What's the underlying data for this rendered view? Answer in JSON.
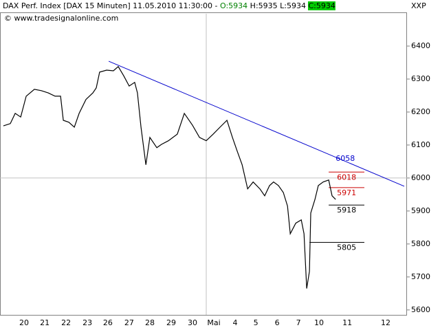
{
  "chart_data": {
    "type": "line",
    "header": [
      {
        "text": "DAX Perf. Index [DAX  15 Minuten] 11.05.2010 11:30:00 - ",
        "color": "#000000"
      },
      {
        "text": "O:5934",
        "color": "#008000"
      },
      {
        "text": " H:5935",
        "color": "#000000"
      },
      {
        "text": " L:5934",
        "color": "#000000"
      },
      {
        "text": " C:5934",
        "color": "#008000",
        "box": true
      }
    ],
    "symbol": "XXP",
    "credit": "© www.tradesignalonline.com",
    "xlim": [
      0,
      19.28
    ],
    "ylim": [
      5585,
      6498
    ],
    "xticks": [
      {
        "value": 1.14,
        "label": "20"
      },
      {
        "value": 2.12,
        "label": "21"
      },
      {
        "value": 3.13,
        "label": "22"
      },
      {
        "value": 4.14,
        "label": "23"
      },
      {
        "value": 5.11,
        "label": "26"
      },
      {
        "value": 6.12,
        "label": "27"
      },
      {
        "value": 7.1,
        "label": "28"
      },
      {
        "value": 8.11,
        "label": "29"
      },
      {
        "value": 9.12,
        "label": "30"
      },
      {
        "value": 10.13,
        "label": "Mai"
      },
      {
        "value": 11.14,
        "label": "4"
      },
      {
        "value": 12.12,
        "label": "5"
      },
      {
        "value": 13.13,
        "label": "6"
      },
      {
        "value": 14.14,
        "label": "7"
      },
      {
        "value": 15.11,
        "label": "10"
      },
      {
        "value": 16.45,
        "label": "11"
      },
      {
        "value": 18.27,
        "label": "12"
      }
    ],
    "yticks": [
      5600,
      5700,
      5800,
      5900,
      6000,
      6100,
      6200,
      6300,
      6400
    ],
    "grid": {
      "y": 6000,
      "x": 9.77
    },
    "series": [
      {
        "name": "DAX",
        "color": "#000000",
        "x": [
          0.16,
          0.49,
          0.72,
          0.98,
          1.24,
          1.63,
          1.95,
          2.28,
          2.61,
          2.87,
          3.0,
          3.26,
          3.52,
          3.75,
          4.07,
          4.4,
          4.56,
          4.72,
          5.05,
          5.37,
          5.6,
          5.86,
          6.12,
          6.38,
          6.51,
          6.68,
          6.91,
          7.1,
          7.43,
          7.65,
          7.98,
          8.4,
          8.73,
          9.12,
          9.45,
          9.77,
          10.1,
          10.42,
          10.75,
          11.01,
          11.24,
          11.47,
          11.73,
          11.99,
          12.31,
          12.54,
          12.77,
          12.96,
          13.19,
          13.42,
          13.62,
          13.75,
          14.01,
          14.27,
          14.4,
          14.53,
          14.66,
          14.72,
          14.92,
          15.08,
          15.31,
          15.57,
          15.73,
          15.9
        ],
        "values": [
          6158,
          6165,
          6196,
          6185,
          6248,
          6269,
          6265,
          6258,
          6248,
          6248,
          6175,
          6169,
          6154,
          6196,
          6238,
          6258,
          6273,
          6321,
          6327,
          6325,
          6338,
          6310,
          6279,
          6290,
          6258,
          6154,
          6040,
          6123,
          6092,
          6102,
          6113,
          6133,
          6196,
          6160,
          6123,
          6113,
          6133,
          6154,
          6175,
          6123,
          6081,
          6040,
          5967,
          5988,
          5967,
          5946,
          5977,
          5988,
          5977,
          5956,
          5915,
          5831,
          5863,
          5873,
          5831,
          5665,
          5717,
          5894,
          5935,
          5977,
          5988,
          5994,
          5946,
          5935
        ]
      }
    ],
    "trend": {
      "x": [
        5.15,
        19.15
      ],
      "values": [
        6354,
        5975
      ],
      "color": "#0000cc",
      "label": 6058,
      "label_x": 15.9
    },
    "levels": [
      {
        "value": 6018,
        "color": "#cc0000",
        "x": [
          15.57,
          17.26
        ]
      },
      {
        "value": 5971,
        "color": "#cc0000",
        "x": [
          15.57,
          17.26
        ]
      },
      {
        "value": 5918,
        "color": "#000000",
        "x": [
          15.57,
          17.26
        ]
      },
      {
        "value": 5805,
        "color": "#000000",
        "x": [
          14.66,
          17.26
        ]
      }
    ]
  }
}
